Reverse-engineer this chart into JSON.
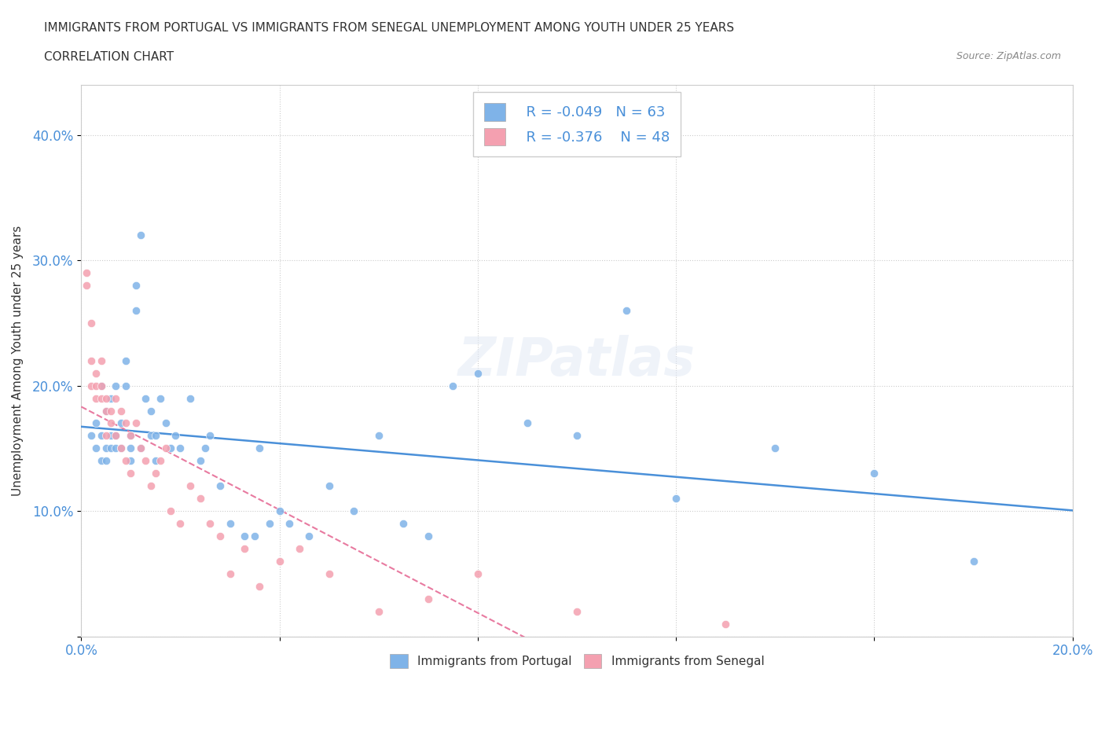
{
  "title_line1": "IMMIGRANTS FROM PORTUGAL VS IMMIGRANTS FROM SENEGAL UNEMPLOYMENT AMONG YOUTH UNDER 25 YEARS",
  "title_line2": "CORRELATION CHART",
  "source_text": "Source: ZipAtlas.com",
  "ylabel": "Unemployment Among Youth under 25 years",
  "x_min": 0.0,
  "x_max": 0.2,
  "y_min": 0.0,
  "y_max": 0.44,
  "portugal_color": "#7fb3e8",
  "senegal_color": "#f4a0b0",
  "portugal_line_color": "#4a90d9",
  "senegal_line_color": "#e87aa0",
  "legend_r_portugal": "R = -0.049",
  "legend_n_portugal": "N = 63",
  "legend_r_senegal": "R = -0.376",
  "legend_n_senegal": "N = 48",
  "watermark": "ZIPatlas",
  "bottom_label_portugal": "Immigrants from Portugal",
  "bottom_label_senegal": "Immigrants from Senegal",
  "portugal_x": [
    0.002,
    0.003,
    0.003,
    0.004,
    0.004,
    0.004,
    0.005,
    0.005,
    0.005,
    0.006,
    0.006,
    0.006,
    0.007,
    0.007,
    0.007,
    0.008,
    0.008,
    0.009,
    0.009,
    0.01,
    0.01,
    0.01,
    0.011,
    0.011,
    0.012,
    0.012,
    0.013,
    0.014,
    0.014,
    0.015,
    0.015,
    0.016,
    0.017,
    0.018,
    0.019,
    0.02,
    0.022,
    0.024,
    0.025,
    0.026,
    0.028,
    0.03,
    0.033,
    0.035,
    0.036,
    0.038,
    0.04,
    0.042,
    0.046,
    0.05,
    0.055,
    0.06,
    0.065,
    0.07,
    0.075,
    0.08,
    0.09,
    0.1,
    0.11,
    0.12,
    0.14,
    0.16,
    0.18
  ],
  "portugal_y": [
    0.16,
    0.15,
    0.17,
    0.16,
    0.14,
    0.2,
    0.15,
    0.18,
    0.14,
    0.16,
    0.15,
    0.19,
    0.15,
    0.16,
    0.2,
    0.17,
    0.15,
    0.22,
    0.2,
    0.15,
    0.16,
    0.14,
    0.26,
    0.28,
    0.32,
    0.15,
    0.19,
    0.16,
    0.18,
    0.14,
    0.16,
    0.19,
    0.17,
    0.15,
    0.16,
    0.15,
    0.19,
    0.14,
    0.15,
    0.16,
    0.12,
    0.09,
    0.08,
    0.08,
    0.15,
    0.09,
    0.1,
    0.09,
    0.08,
    0.12,
    0.1,
    0.16,
    0.09,
    0.08,
    0.2,
    0.21,
    0.17,
    0.16,
    0.26,
    0.11,
    0.15,
    0.13,
    0.06
  ],
  "senegal_x": [
    0.001,
    0.001,
    0.002,
    0.002,
    0.002,
    0.003,
    0.003,
    0.003,
    0.004,
    0.004,
    0.004,
    0.005,
    0.005,
    0.005,
    0.006,
    0.006,
    0.007,
    0.007,
    0.008,
    0.008,
    0.009,
    0.009,
    0.01,
    0.01,
    0.011,
    0.012,
    0.013,
    0.014,
    0.015,
    0.016,
    0.017,
    0.018,
    0.02,
    0.022,
    0.024,
    0.026,
    0.028,
    0.03,
    0.033,
    0.036,
    0.04,
    0.044,
    0.05,
    0.06,
    0.07,
    0.08,
    0.1,
    0.13
  ],
  "senegal_y": [
    0.29,
    0.28,
    0.25,
    0.22,
    0.2,
    0.21,
    0.19,
    0.2,
    0.22,
    0.19,
    0.2,
    0.18,
    0.19,
    0.16,
    0.18,
    0.17,
    0.19,
    0.16,
    0.18,
    0.15,
    0.17,
    0.14,
    0.16,
    0.13,
    0.17,
    0.15,
    0.14,
    0.12,
    0.13,
    0.14,
    0.15,
    0.1,
    0.09,
    0.12,
    0.11,
    0.09,
    0.08,
    0.05,
    0.07,
    0.04,
    0.06,
    0.07,
    0.05,
    0.02,
    0.03,
    0.05,
    0.02,
    0.01
  ]
}
